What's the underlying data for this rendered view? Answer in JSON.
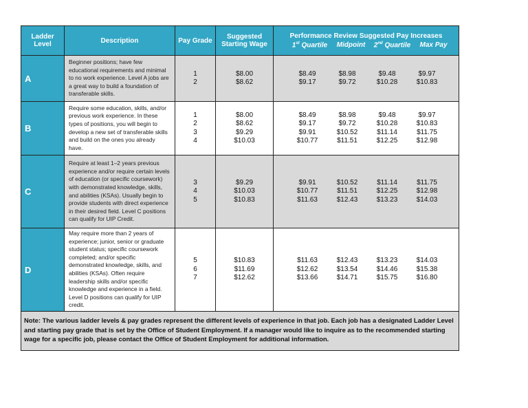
{
  "header": {
    "ladder_level": "Ladder Level",
    "description": "Description",
    "pay_grade": "Pay Grade",
    "starting_wage": "Suggested Starting Wage",
    "performance": "Performance Review Suggested Pay Increases",
    "sub_columns": [
      {
        "lead": "1",
        "sup": "st",
        "label": "Quartile"
      },
      {
        "label": "Midpoint"
      },
      {
        "lead": "2",
        "sup": "nd",
        "label": "Quartile"
      },
      {
        "label": "Max Pay"
      }
    ]
  },
  "rows": [
    {
      "level": "A",
      "description": "Beginner positions; have few educational requirements and minimal to no work experience. Level A jobs are a great way to build a foundation of transferable skills.",
      "pay_grades": [
        1,
        2
      ],
      "starting_wages": [
        "$8.00",
        "$8.62"
      ],
      "increases": [
        [
          "$8.49",
          "$9.17"
        ],
        [
          "$8.98",
          "$9.72"
        ],
        [
          "$9.48",
          "$10.28"
        ],
        [
          "$9.97",
          "$10.83"
        ]
      ]
    },
    {
      "level": "B",
      "description": "Require some education, skills, and/or previous work experience. In these types of positions, you will begin to develop a new set of transferable skills and build on the ones you already have.",
      "pay_grades": [
        1,
        2,
        3,
        4
      ],
      "starting_wages": [
        "$8.00",
        "$8.62",
        "$9.29",
        "$10.03"
      ],
      "increases": [
        [
          "$8.49",
          "$9.17",
          "$9.91",
          "$10.77"
        ],
        [
          "$8.98",
          "$9.72",
          "$10.52",
          "$11.51"
        ],
        [
          "$9.48",
          "$10.28",
          "$11.14",
          "$12.25"
        ],
        [
          "$9.97",
          "$10.83",
          "$11.75",
          "$12.98"
        ]
      ]
    },
    {
      "level": "C",
      "description": "Require at least 1–2 years previous experience and/or require certain levels of education (or specific coursework) with demonstrated knowledge, skills, and abilities (KSAs). Usually begin to provide students with direct experience in their desired field. Level C positions can qualify for UIP Credit.",
      "pay_grades": [
        3,
        4,
        5
      ],
      "starting_wages": [
        "$9.29",
        "$10.03",
        "$10.83"
      ],
      "increases": [
        [
          "$9.91",
          "$10.77",
          "$11.63"
        ],
        [
          "$10.52",
          "$11.51",
          "$12.43"
        ],
        [
          "$11.14",
          "$12.25",
          "$13.23"
        ],
        [
          "$11.75",
          "$12.98",
          "$14.03"
        ]
      ]
    },
    {
      "level": "D",
      "description": "May require more than 2 years of experience; junior, senior or graduate student status; specific coursework completed; and/or specific demonstrated knowledge, skills, and abilities (KSAs). Often require leadership skills and/or specific knowledge and experience in a field. Level D positions can qualify for UIP credit.",
      "pay_grades": [
        5,
        6,
        7
      ],
      "starting_wages": [
        "$10.83",
        "$11.69",
        "$12.62"
      ],
      "increases": [
        [
          "$11.63",
          "$12.62",
          "$13.66"
        ],
        [
          "$12.43",
          "$13.54",
          "$14.71"
        ],
        [
          "$13.23",
          "$14.46",
          "$15.75"
        ],
        [
          "$14.03",
          "$15.38",
          "$16.80"
        ]
      ]
    }
  ],
  "note": {
    "label": "Note:",
    "text": "The various ladder levels & pay grades represent the different levels of experience in that job.  Each job has a designated Ladder Level and starting pay grade that is set by the Office of Student Employment.  If a manager would like to inquire as to the recommended starting wage for a specific job, please contact the Office of Student Employment for additional information."
  }
}
